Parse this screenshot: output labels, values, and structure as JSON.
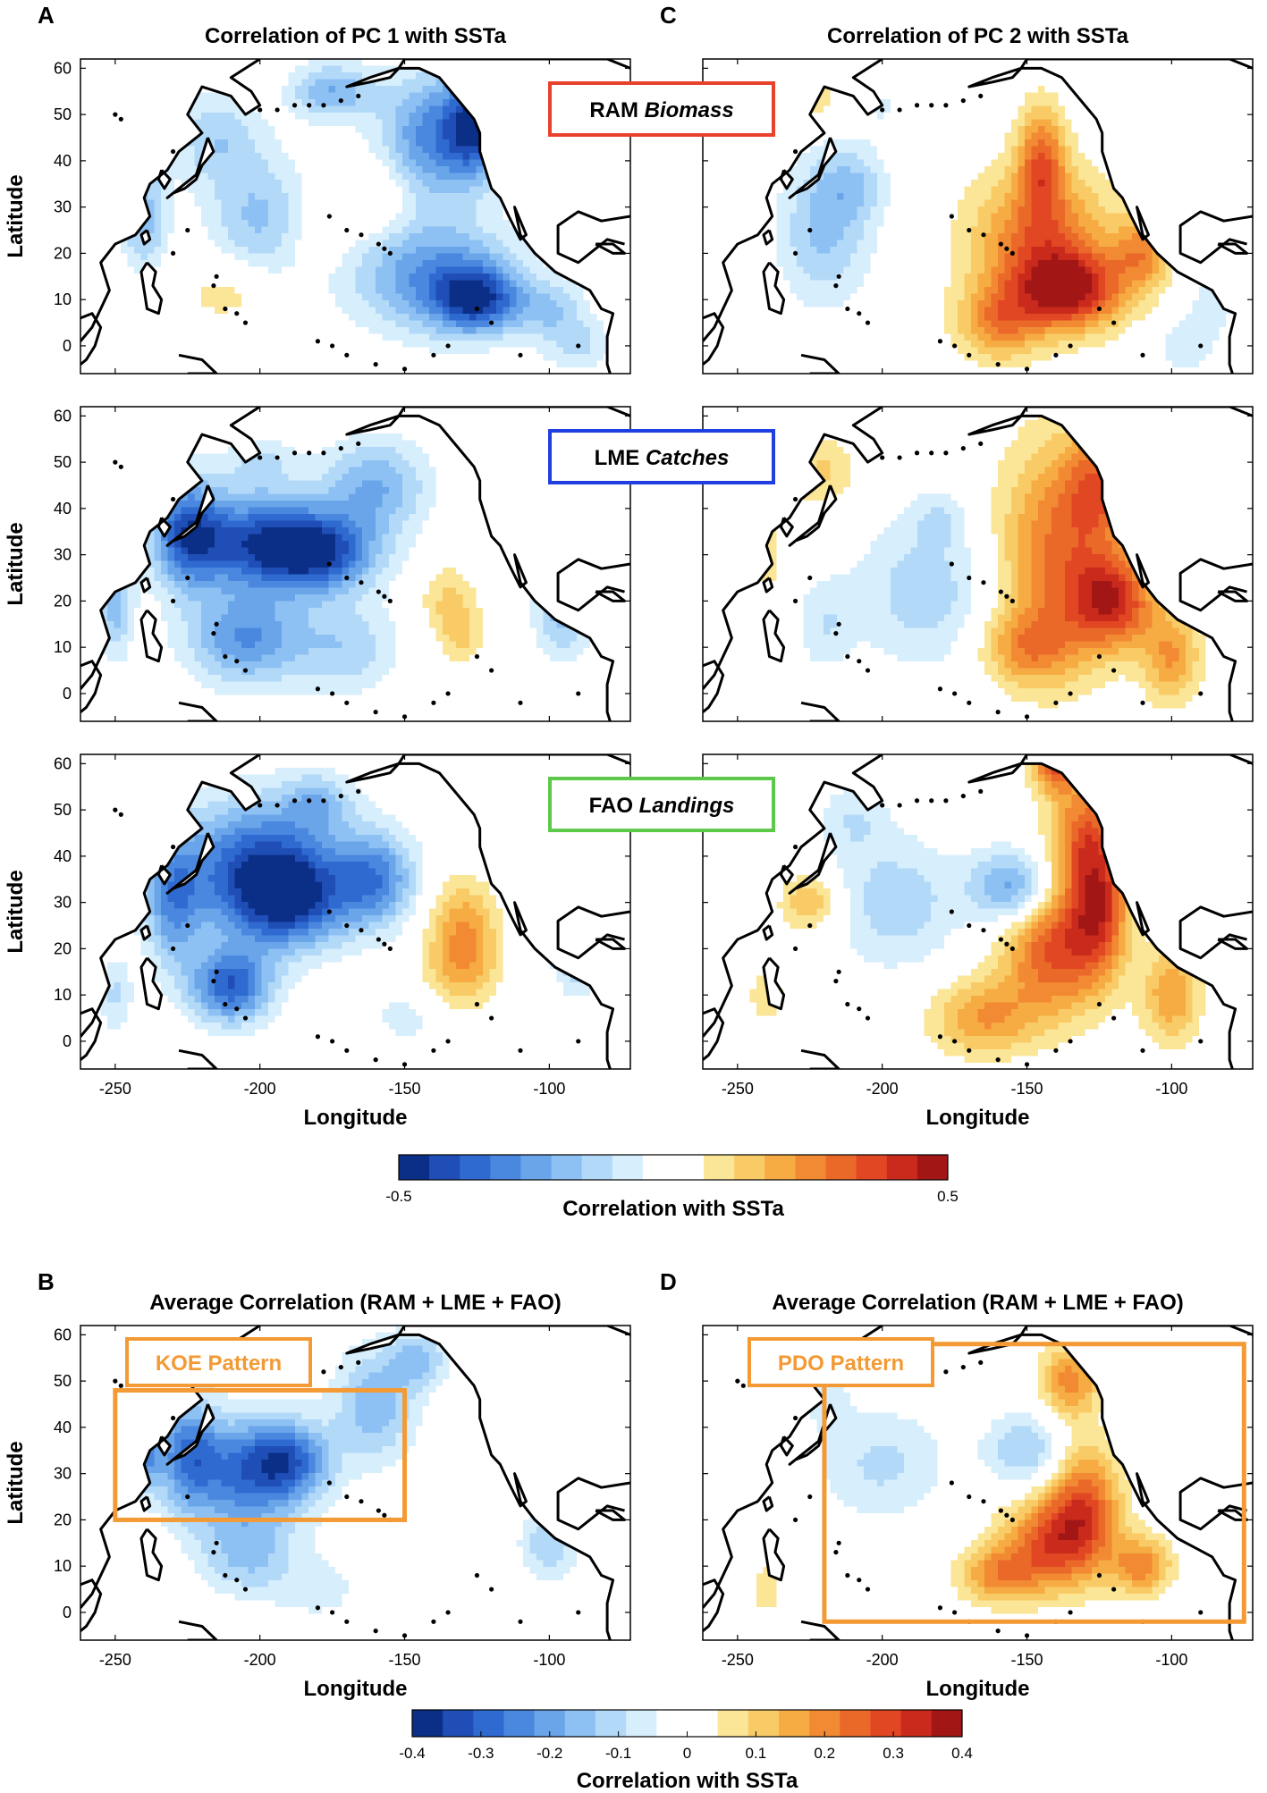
{
  "chart_data": {
    "type": "heatmap",
    "panels": [
      {
        "letter": "A",
        "title": "Correlation of PC 1 with SSTa",
        "pattern": "pc1_ram",
        "show_ylabel": true,
        "show_xlabel": false
      },
      {
        "letter": "C",
        "title": "Correlation of PC 2 with SSTa",
        "pattern": "pc2_ram",
        "show_ylabel": false,
        "show_xlabel": false
      },
      {
        "letter": "",
        "title": "",
        "pattern": "pc1_lme",
        "show_ylabel": true,
        "show_xlabel": false
      },
      {
        "letter": "",
        "title": "",
        "pattern": "pc2_lme",
        "show_ylabel": false,
        "show_xlabel": false
      },
      {
        "letter": "",
        "title": "",
        "pattern": "pc1_fao",
        "show_ylabel": true,
        "show_xlabel": true
      },
      {
        "letter": "",
        "title": "",
        "pattern": "pc2_fao",
        "show_ylabel": false,
        "show_xlabel": true
      },
      {
        "letter": "B",
        "title": "Average Correlation (RAM + LME + FAO)",
        "pattern": "pc1_avg",
        "show_ylabel": true,
        "show_xlabel": true
      },
      {
        "letter": "D",
        "title": "Average Correlation (RAM + LME + FAO)",
        "pattern": "pc2_avg",
        "show_ylabel": false,
        "show_xlabel": true
      }
    ],
    "datasets": [
      {
        "prefix": "RAM",
        "italic": "Biomass",
        "color": "#e8412c"
      },
      {
        "prefix": "LME",
        "italic": "Catches",
        "color": "#1f3fe0"
      },
      {
        "prefix": "FAO",
        "italic": "Landings",
        "color": "#5dc94a"
      }
    ],
    "boxes": [
      {
        "panel": 6,
        "label": "KOE Pattern",
        "lon_range": [
          -250,
          -150
        ],
        "lat_range": [
          20,
          48
        ]
      },
      {
        "panel": 7,
        "label": "PDO Pattern",
        "lon_range": [
          -220,
          -75
        ],
        "lat_range": [
          -2,
          58
        ]
      }
    ],
    "xlabel": "Longitude",
    "ylabel": "Latitude",
    "x_range": [
      -262,
      -72
    ],
    "y_range": [
      -6,
      62
    ],
    "x_ticks": [
      -250,
      -200,
      -150,
      -100
    ],
    "y_ticks": [
      0,
      10,
      20,
      30,
      40,
      50,
      60
    ],
    "colorbar_top": {
      "label": "Correlation with SSTa",
      "min": -0.5,
      "max": 0.5,
      "tick_labels": [
        "-0.5",
        "0.5"
      ]
    },
    "colorbar_bottom": {
      "label": "Correlation with SSTa",
      "min": -0.4,
      "max": 0.4,
      "tick_labels": [
        "-0.4",
        "-0.3",
        "-0.2",
        "-0.1",
        "0",
        "0.1",
        "0.2",
        "0.3",
        "0.4"
      ]
    },
    "colorscale": [
      "#0b2f87",
      "#1f4fb6",
      "#2f6ad0",
      "#4a88df",
      "#6aa5ea",
      "#8ec1f3",
      "#b3d9f9",
      "#d7eefc",
      "#ffffff",
      "#ffffff",
      "#fbe596",
      "#f9cb66",
      "#f6ab43",
      "#f18a33",
      "#ea6828",
      "#e04722",
      "#c92a1c",
      "#a31616"
    ]
  }
}
